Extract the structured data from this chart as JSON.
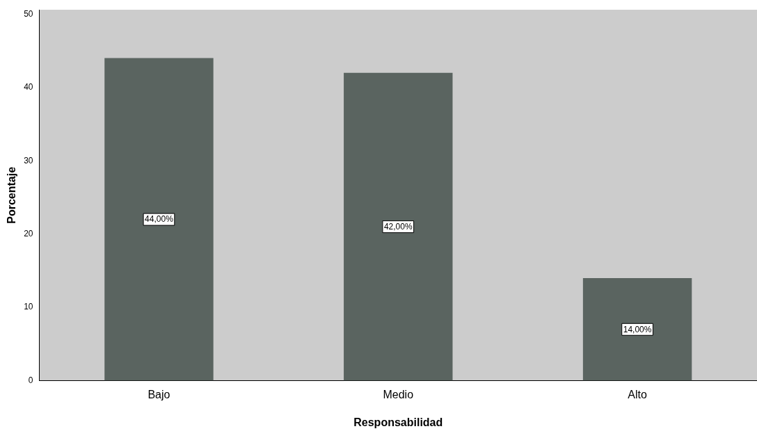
{
  "chart_data": {
    "type": "bar",
    "xlabel": "Responsabilidad",
    "ylabel": "Porcentaje",
    "categories": [
      "Bajo",
      "Medio",
      "Alto"
    ],
    "values": [
      44,
      42,
      14
    ],
    "value_labels": [
      "44,00%",
      "42,00%",
      "14,00%"
    ],
    "color": "#5a6460",
    "ylim": [
      0,
      50.6
    ],
    "yticks": [
      0,
      10,
      20,
      30,
      40,
      50
    ],
    "grid": false,
    "legend": false
  }
}
